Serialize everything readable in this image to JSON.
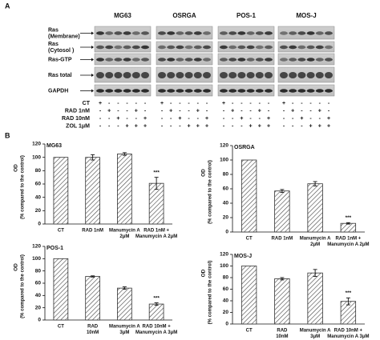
{
  "panel_a": {
    "label": "A",
    "cell_lines": [
      "MG63",
      "OSRGA",
      "POS-1",
      "MOS-J"
    ],
    "row_labels": [
      [
        "Ras",
        "(Membrane)"
      ],
      [
        "Ras",
        "(Cytosol )"
      ],
      [
        "Ras-GTP"
      ],
      [
        "Ras total"
      ],
      [
        "GAPDH"
      ]
    ],
    "treatments": [
      {
        "name": "CT",
        "signs": [
          "+",
          "-",
          "-",
          "-",
          "-",
          "-"
        ]
      },
      {
        "name": "RAD 1nM",
        "signs": [
          "-",
          "+",
          "-",
          "-",
          "+",
          "-"
        ]
      },
      {
        "name": "RAD 10nM",
        "signs": [
          "-",
          "-",
          "+",
          "-",
          "-",
          "+"
        ]
      },
      {
        "name": "ZOL 1μM",
        "signs": [
          "-",
          "-",
          "-",
          "+",
          "+",
          "+"
        ]
      }
    ]
  },
  "panel_b": {
    "label": "B"
  },
  "chart_data": [
    {
      "type": "bar",
      "title": "MG63",
      "y_label": [
        "OD",
        "(% compared to the control)"
      ],
      "categories": [
        [
          "CT"
        ],
        [
          "RAD 1nM"
        ],
        [
          "Manumycin A",
          "2μM"
        ],
        [
          "RAD 1nM +",
          "Manumycin A 2μM"
        ]
      ],
      "values": [
        100,
        100,
        105,
        61
      ],
      "errors": [
        null,
        4,
        2,
        9
      ],
      "significance": [
        null,
        null,
        null,
        "***"
      ],
      "ylim": [
        0,
        120
      ],
      "yticks": [
        0,
        20,
        40,
        60,
        80,
        100,
        120
      ],
      "color": "#333333"
    },
    {
      "type": "bar",
      "title": "OSRGA",
      "y_label": [
        "OD",
        "(% compared to the control)"
      ],
      "categories": [
        [
          "CT"
        ],
        [
          "RAD 1nM"
        ],
        [
          "Manumycin A",
          "2μM"
        ],
        [
          "RAD 1nM +",
          "Manumycin A 2μM"
        ]
      ],
      "values": [
        100,
        57,
        67,
        12
      ],
      "errors": [
        null,
        2,
        3,
        1
      ],
      "significance": [
        null,
        null,
        null,
        "***"
      ],
      "ylim": [
        0,
        120
      ],
      "yticks": [
        0,
        20,
        40,
        60,
        80,
        100,
        120
      ],
      "color": "#333333"
    },
    {
      "type": "bar",
      "title": "POS-1",
      "y_label": [
        "OD",
        "(% compared to the control)"
      ],
      "categories": [
        [
          "CT"
        ],
        [
          "RAD",
          "10nM"
        ],
        [
          "Manumycin A",
          "3μM"
        ],
        [
          "RAD 10nM +",
          "Manumycin A 3μM"
        ]
      ],
      "values": [
        100,
        71,
        52,
        26
      ],
      "errors": [
        null,
        1,
        2,
        2
      ],
      "significance": [
        null,
        null,
        null,
        "***"
      ],
      "ylim": [
        0,
        120
      ],
      "yticks": [
        0,
        20,
        40,
        60,
        80,
        100,
        120
      ],
      "color": "#333333"
    },
    {
      "type": "bar",
      "title": "MOS-J",
      "y_label": [
        "OD",
        "(% compared to the control)"
      ],
      "categories": [
        [
          "CT"
        ],
        [
          "RAD",
          "10nM"
        ],
        [
          "Manumycin A",
          "3μM"
        ],
        [
          "RAD 10nM +",
          "Manumycin A 3μM"
        ]
      ],
      "values": [
        100,
        78,
        88,
        39
      ],
      "errors": [
        null,
        2,
        6,
        6
      ],
      "significance": [
        null,
        null,
        null,
        "***"
      ],
      "ylim": [
        0,
        120
      ],
      "yticks": [
        0,
        20,
        40,
        60,
        80,
        100,
        120
      ],
      "color": "#333333"
    }
  ]
}
